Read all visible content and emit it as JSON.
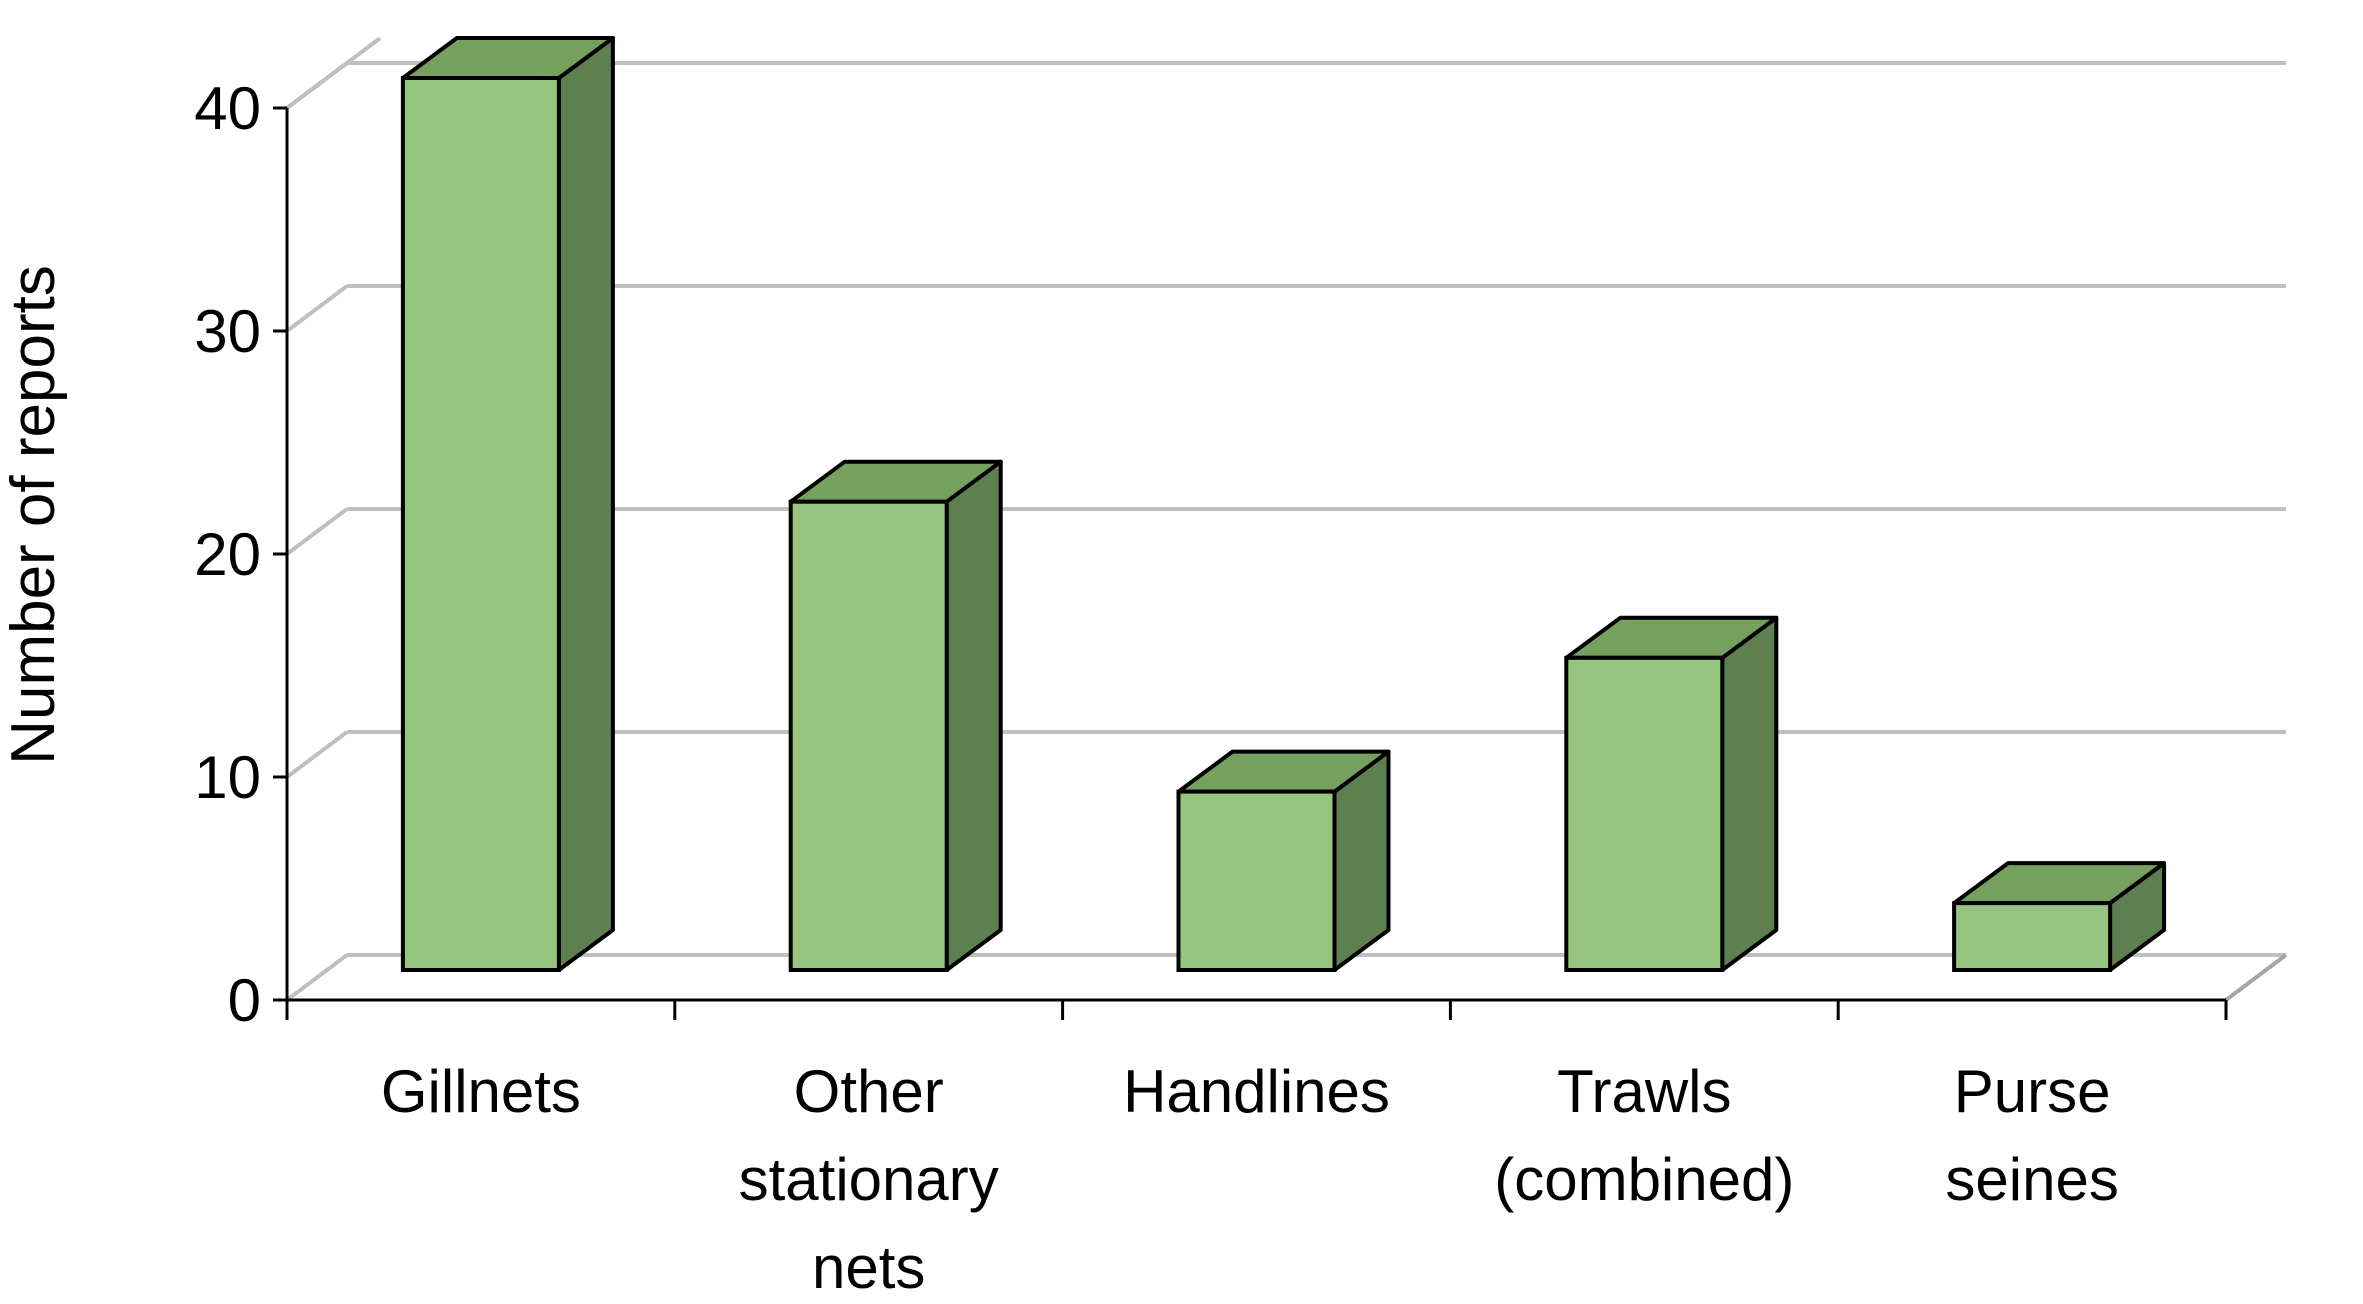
{
  "chart_data": {
    "type": "bar",
    "style": "3d-column",
    "title": "",
    "xlabel": "",
    "ylabel": "Number of reports",
    "ylim": [
      0,
      40
    ],
    "yticks": [
      "0",
      "10",
      "20",
      "30",
      "40"
    ],
    "grid": true,
    "legend": "none",
    "categories": [
      {
        "label_lines": [
          "Gillnets"
        ]
      },
      {
        "label_lines": [
          "Other",
          "stationary",
          "nets"
        ]
      },
      {
        "label_lines": [
          "Handlines"
        ]
      },
      {
        "label_lines": [
          "Trawls",
          "(combined)"
        ]
      },
      {
        "label_lines": [
          "Purse",
          "seines"
        ]
      }
    ],
    "values": [
      40,
      21,
      8,
      14,
      3
    ],
    "colors": {
      "bar_front": "#95c57e",
      "bar_top": "#76a05d",
      "bar_side": "#5e8050",
      "bar_outline": "#000000",
      "gridline": "#bfbfbf",
      "axis": "#000000"
    }
  }
}
